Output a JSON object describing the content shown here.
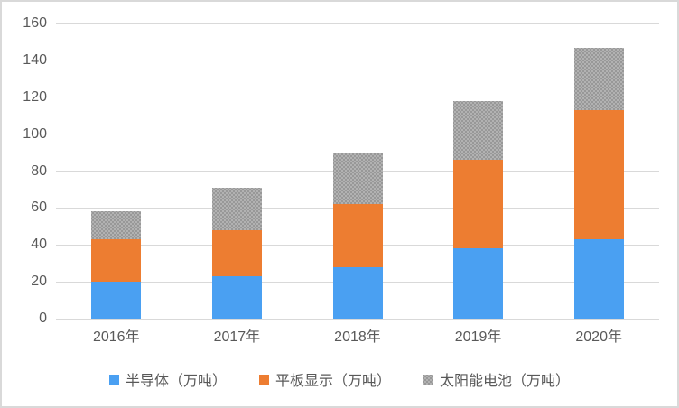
{
  "chart_data": {
    "type": "bar",
    "stacked": true,
    "title": "",
    "xlabel": "",
    "ylabel": "",
    "categories": [
      "2016年",
      "2017年",
      "2018年",
      "2019年",
      "2020年"
    ],
    "series": [
      {
        "name": "半导体（万吨）",
        "color": "#4aa0f2",
        "pattern": false,
        "values": [
          20,
          23,
          28,
          38,
          43
        ]
      },
      {
        "name": "平板显示（万吨）",
        "color": "#ed7d31",
        "pattern": false,
        "values": [
          23,
          25,
          34,
          48,
          70
        ]
      },
      {
        "name": "太阳能电池（万吨）",
        "color": "#a6a6a6",
        "pattern": true,
        "values": [
          15,
          23,
          28,
          32,
          34
        ]
      }
    ],
    "stack_totals": [
      58,
      71,
      90,
      118,
      147
    ],
    "ylim": [
      0,
      160
    ],
    "ytick_step": 20,
    "ytick_labels": [
      "0",
      "20",
      "40",
      "60",
      "80",
      "100",
      "120",
      "140",
      "160"
    ],
    "grid": "horizontal",
    "gridline_color": "#d9d9d9",
    "axis_text_color": "#595959",
    "legend_position": "bottom-center",
    "legend_marker": "square"
  }
}
